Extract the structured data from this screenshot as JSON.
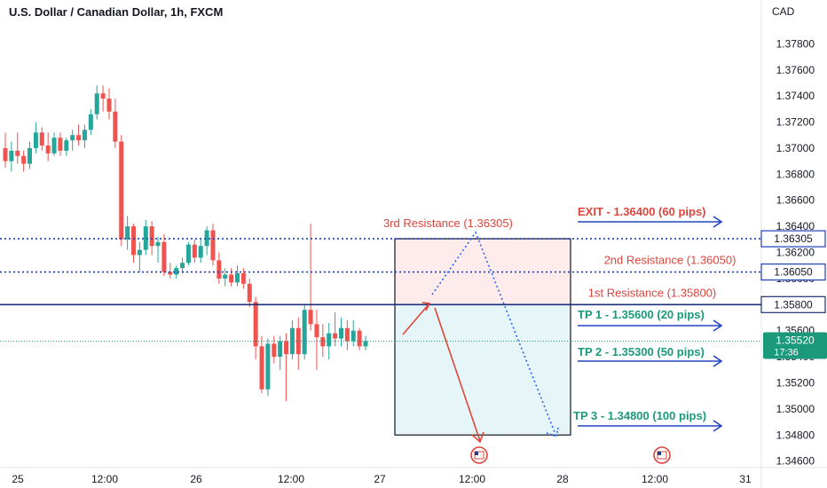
{
  "header": {
    "title": "U.S. Dollar / Canadian Dollar, 1h, FXCM",
    "currency": "CAD"
  },
  "chart_data": {
    "type": "candlestick",
    "title": "U.S. Dollar / Canadian Dollar, 1h, FXCM",
    "ylim": [
      1.3455,
      1.38
    ],
    "y_ticks": [
      "1.37800",
      "1.37600",
      "1.37400",
      "1.37200",
      "1.37000",
      "1.36800",
      "1.36600",
      "1.36400",
      "1.36200",
      "1.36000",
      "1.35800",
      "1.35600",
      "1.35400",
      "1.35200",
      "1.35000",
      "1.34800",
      "1.34600"
    ],
    "x_ticks": [
      "25",
      "12:00",
      "26",
      "12:00",
      "27",
      "12:00",
      "28",
      "12:00",
      "31"
    ],
    "candles": [
      {
        "o": 1.37,
        "h": 1.3712,
        "l": 1.3685,
        "c": 1.369
      },
      {
        "o": 1.369,
        "h": 1.3705,
        "l": 1.3682,
        "c": 1.3698
      },
      {
        "o": 1.3698,
        "h": 1.3712,
        "l": 1.3688,
        "c": 1.3694
      },
      {
        "o": 1.3694,
        "h": 1.3698,
        "l": 1.3682,
        "c": 1.3688
      },
      {
        "o": 1.3688,
        "h": 1.3705,
        "l": 1.3684,
        "c": 1.37
      },
      {
        "o": 1.37,
        "h": 1.372,
        "l": 1.3696,
        "c": 1.3712
      },
      {
        "o": 1.3712,
        "h": 1.3716,
        "l": 1.3698,
        "c": 1.3702
      },
      {
        "o": 1.3702,
        "h": 1.3712,
        "l": 1.369,
        "c": 1.3696
      },
      {
        "o": 1.3696,
        "h": 1.3712,
        "l": 1.3694,
        "c": 1.3708
      },
      {
        "o": 1.3708,
        "h": 1.3712,
        "l": 1.3694,
        "c": 1.3698
      },
      {
        "o": 1.3698,
        "h": 1.3708,
        "l": 1.3694,
        "c": 1.3706
      },
      {
        "o": 1.3706,
        "h": 1.3714,
        "l": 1.3698,
        "c": 1.371
      },
      {
        "o": 1.371,
        "h": 1.3718,
        "l": 1.3702,
        "c": 1.3706
      },
      {
        "o": 1.3706,
        "h": 1.3718,
        "l": 1.37,
        "c": 1.3714
      },
      {
        "o": 1.3714,
        "h": 1.373,
        "l": 1.371,
        "c": 1.3726
      },
      {
        "o": 1.3726,
        "h": 1.3748,
        "l": 1.3722,
        "c": 1.3742
      },
      {
        "o": 1.3742,
        "h": 1.3748,
        "l": 1.3728,
        "c": 1.3738
      },
      {
        "o": 1.3738,
        "h": 1.3746,
        "l": 1.3722,
        "c": 1.3728
      },
      {
        "o": 1.3728,
        "h": 1.3738,
        "l": 1.37,
        "c": 1.3705
      },
      {
        "o": 1.3705,
        "h": 1.371,
        "l": 1.3625,
        "c": 1.363
      },
      {
        "o": 1.363,
        "h": 1.3648,
        "l": 1.3622,
        "c": 1.364
      },
      {
        "o": 1.364,
        "h": 1.3642,
        "l": 1.3612,
        "c": 1.3618
      },
      {
        "o": 1.3618,
        "h": 1.3628,
        "l": 1.3605,
        "c": 1.3622
      },
      {
        "o": 1.3622,
        "h": 1.3645,
        "l": 1.3618,
        "c": 1.364
      },
      {
        "o": 1.364,
        "h": 1.3644,
        "l": 1.3618,
        "c": 1.3625
      },
      {
        "o": 1.3625,
        "h": 1.3632,
        "l": 1.3612,
        "c": 1.3628
      },
      {
        "o": 1.3628,
        "h": 1.3634,
        "l": 1.3602,
        "c": 1.3605
      },
      {
        "o": 1.3605,
        "h": 1.3612,
        "l": 1.36,
        "c": 1.3603
      },
      {
        "o": 1.3603,
        "h": 1.361,
        "l": 1.36,
        "c": 1.3608
      },
      {
        "o": 1.3608,
        "h": 1.3616,
        "l": 1.3604,
        "c": 1.3612
      },
      {
        "o": 1.3612,
        "h": 1.3628,
        "l": 1.361,
        "c": 1.3626
      },
      {
        "o": 1.3626,
        "h": 1.363,
        "l": 1.3612,
        "c": 1.3616
      },
      {
        "o": 1.3616,
        "h": 1.363,
        "l": 1.3612,
        "c": 1.3625
      },
      {
        "o": 1.3625,
        "h": 1.364,
        "l": 1.3618,
        "c": 1.3637
      },
      {
        "o": 1.3637,
        "h": 1.3642,
        "l": 1.361,
        "c": 1.3614
      },
      {
        "o": 1.3614,
        "h": 1.362,
        "l": 1.3596,
        "c": 1.36
      },
      {
        "o": 1.36,
        "h": 1.3608,
        "l": 1.3594,
        "c": 1.3603
      },
      {
        "o": 1.3603,
        "h": 1.3608,
        "l": 1.3594,
        "c": 1.3597
      },
      {
        "o": 1.3597,
        "h": 1.361,
        "l": 1.3594,
        "c": 1.3604
      },
      {
        "o": 1.3604,
        "h": 1.3608,
        "l": 1.3592,
        "c": 1.3596
      },
      {
        "o": 1.3596,
        "h": 1.36,
        "l": 1.3578,
        "c": 1.3582
      },
      {
        "o": 1.3582,
        "h": 1.3586,
        "l": 1.3538,
        "c": 1.3548
      },
      {
        "o": 1.3548,
        "h": 1.3556,
        "l": 1.3512,
        "c": 1.3515
      },
      {
        "o": 1.3515,
        "h": 1.3554,
        "l": 1.351,
        "c": 1.355
      },
      {
        "o": 1.355,
        "h": 1.3556,
        "l": 1.3535,
        "c": 1.354
      },
      {
        "o": 1.354,
        "h": 1.3556,
        "l": 1.353,
        "c": 1.3552
      },
      {
        "o": 1.3552,
        "h": 1.3558,
        "l": 1.3506,
        "c": 1.3542
      },
      {
        "o": 1.3542,
        "h": 1.3568,
        "l": 1.3538,
        "c": 1.3562
      },
      {
        "o": 1.3562,
        "h": 1.357,
        "l": 1.353,
        "c": 1.3542
      },
      {
        "o": 1.3542,
        "h": 1.358,
        "l": 1.3538,
        "c": 1.3576
      },
      {
        "o": 1.3576,
        "h": 1.3642,
        "l": 1.356,
        "c": 1.3565
      },
      {
        "o": 1.3565,
        "h": 1.3576,
        "l": 1.353,
        "c": 1.3555
      },
      {
        "o": 1.3555,
        "h": 1.3565,
        "l": 1.354,
        "c": 1.3548
      },
      {
        "o": 1.3548,
        "h": 1.3566,
        "l": 1.3538,
        "c": 1.3558
      },
      {
        "o": 1.3558,
        "h": 1.3574,
        "l": 1.3548,
        "c": 1.3554
      },
      {
        "o": 1.3554,
        "h": 1.357,
        "l": 1.3548,
        "c": 1.3562
      },
      {
        "o": 1.3562,
        "h": 1.3568,
        "l": 1.3545,
        "c": 1.3552
      },
      {
        "o": 1.3552,
        "h": 1.3568,
        "l": 1.3548,
        "c": 1.356
      },
      {
        "o": 1.356,
        "h": 1.3562,
        "l": 1.3545,
        "c": 1.3548
      },
      {
        "o": 1.3548,
        "h": 1.3556,
        "l": 1.3545,
        "c": 1.3552
      }
    ],
    "levels": [
      {
        "label": "3rd Resistance (1.36305)",
        "value": 1.36305,
        "badge": "1.36305",
        "style": "dotted",
        "color": "#1a3eb8"
      },
      {
        "label": "2nd Resistance (1.36050)",
        "value": 1.3605,
        "badge": "1.36050",
        "style": "dotted",
        "color": "#1a3eb8"
      },
      {
        "label": "1st Resistance (1.35800)",
        "value": 1.358,
        "badge": "1.35800",
        "style": "solid",
        "color": "#1c2f7a"
      }
    ],
    "current_price": {
      "value": 1.3552,
      "label": "1.35520",
      "countdown": "17:36",
      "color": "#1a9a7a"
    },
    "targets": [
      {
        "label": "EXIT - 1.36400 (60 pips)",
        "value": 1.364,
        "color": "#e0443a"
      },
      {
        "label": "TP 1 - 1.35600 (20 pips)",
        "value": 1.356,
        "color": "#1a9a7a"
      },
      {
        "label": "TP 2 - 1.35300 (50 pips)",
        "value": 1.353,
        "color": "#1a9a7a"
      },
      {
        "label": "TP 3 - 1.34800 (100 pips)",
        "value": 1.348,
        "color": "#1a9a7a"
      }
    ],
    "position_box": {
      "entry": 1.358,
      "top": 1.36305,
      "bottom": 1.348
    },
    "colors": {
      "up": "#26a69a",
      "down": "#ef5350",
      "resistance_text": "#e0443a",
      "arrow_red": "#e0443a",
      "arrow_blue": "#2962ff"
    }
  }
}
